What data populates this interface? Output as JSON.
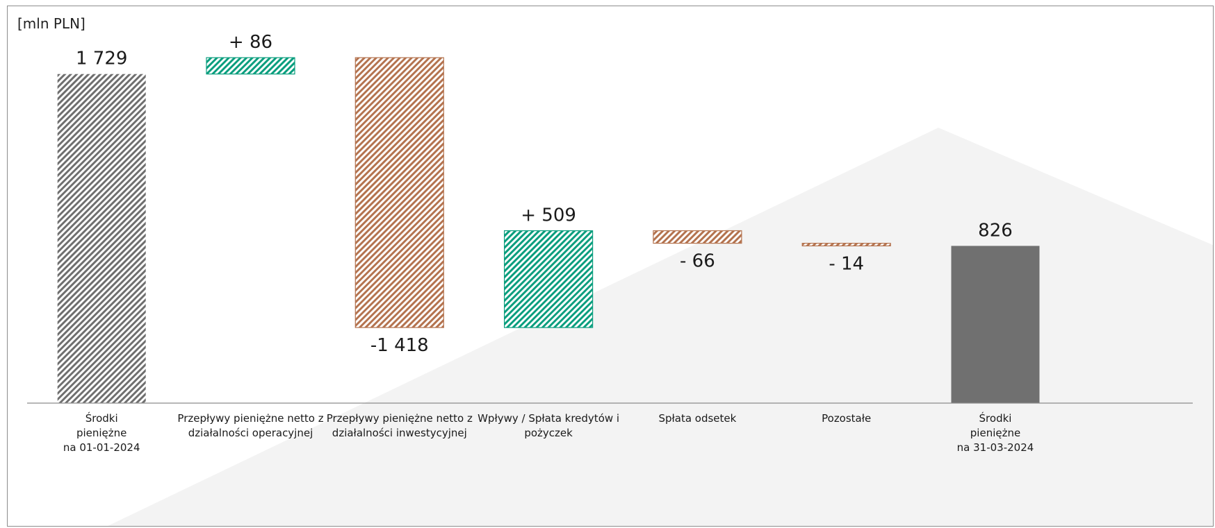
{
  "chart_data": {
    "type": "waterfall",
    "unit_label": "[mln PLN]",
    "categories": [
      "Środki\npieniężne\nna 01-01-2024",
      "Przepływy pieniężne netto z\ndziałalności operacyjnej",
      "Przepływy pieniężne netto z\ndziałalności inwestycyjnej",
      "Wpływy / Spłata kredytów i\npożyczek",
      "Spłata odsetek",
      "Pozostałe",
      "Środki\npieniężne\nna 31-03-2024"
    ],
    "values": [
      1729,
      86,
      -1418,
      509,
      -66,
      -14,
      826
    ],
    "kinds": [
      "start",
      "delta",
      "delta",
      "delta",
      "delta",
      "delta",
      "end"
    ],
    "value_labels": [
      "1 729",
      "+ 86",
      "-1 418",
      "+ 509",
      "- 66",
      "- 14",
      "826"
    ],
    "ylim": [
      0,
      1900
    ],
    "grid": false,
    "colors": {
      "start": "#6f6f6f",
      "end": "#707070",
      "increase": "#0a9e7e",
      "decrease": "#b4734f",
      "background_shape": "#f3f3f3",
      "axis": "#8c8c8c"
    }
  }
}
